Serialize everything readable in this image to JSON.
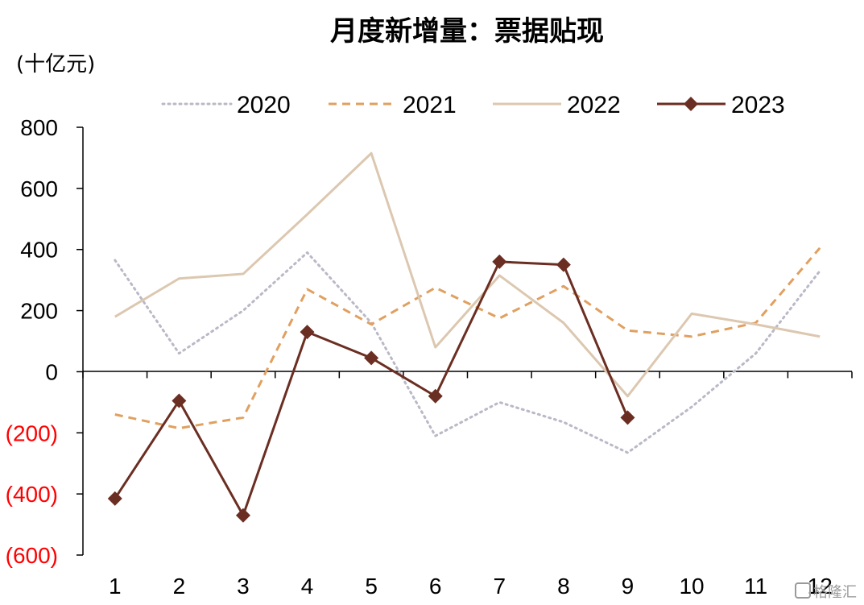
{
  "chart_data": {
    "type": "line",
    "title": "月度新增量：票据贴现",
    "unit_label": "(十亿元)",
    "categories": [
      "1",
      "2",
      "3",
      "4",
      "5",
      "6",
      "7",
      "8",
      "9",
      "10",
      "11",
      "12"
    ],
    "ylim": [
      -600,
      800
    ],
    "y_ticks": [
      800,
      600,
      400,
      200,
      0,
      -200,
      -400,
      -600
    ],
    "y_tick_labels": [
      "800",
      "600",
      "400",
      "200",
      "0",
      "(200)",
      "(400)",
      "(600)"
    ],
    "negative_tick_color": "#ff0000",
    "grid": false,
    "legend_position": "top",
    "series": [
      {
        "name": "2020",
        "color": "#b9b9c7",
        "style": "dotted",
        "values": [
          365,
          60,
          200,
          390,
          160,
          -210,
          -100,
          -165,
          -265,
          -115,
          60,
          330
        ]
      },
      {
        "name": "2021",
        "color": "#e0a060",
        "style": "dashed",
        "values": [
          -140,
          -185,
          -150,
          270,
          155,
          275,
          175,
          280,
          135,
          115,
          160,
          405
        ]
      },
      {
        "name": "2022",
        "color": "#dcc8b0",
        "style": "solid",
        "values": [
          180,
          305,
          320,
          515,
          715,
          80,
          315,
          160,
          -80,
          190,
          155,
          115
        ]
      },
      {
        "name": "2023",
        "color": "#6b2e22",
        "style": "solid-marker",
        "values": [
          -415,
          -95,
          -470,
          130,
          45,
          -80,
          360,
          350,
          -150,
          null,
          null,
          null
        ]
      }
    ]
  },
  "watermark": "格隆汇"
}
